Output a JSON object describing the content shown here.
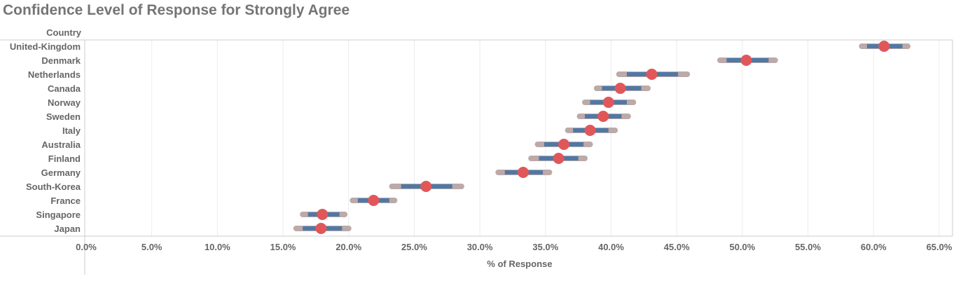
{
  "chart_data": {
    "type": "dot-interval",
    "title": "Confidence Level of Response for Strongly Agree",
    "row_header": "Country",
    "xlabel": "% of Response",
    "xlim": [
      0,
      65
    ],
    "xticks": [
      0,
      5,
      10,
      15,
      20,
      25,
      30,
      35,
      40,
      45,
      50,
      55,
      60,
      65
    ],
    "xtick_labels": [
      "0.0%",
      "5.0%",
      "10.0%",
      "15.0%",
      "20.0%",
      "25.0%",
      "30.0%",
      "35.0%",
      "40.0%",
      "45.0%",
      "50.0%",
      "55.0%",
      "60.0%",
      "65.0%"
    ],
    "colors": {
      "outer": "#bcaaa8",
      "inner": "#4e79a7",
      "point": "#e15759",
      "grid": "#ececec",
      "axis": "#cccccc"
    },
    "series": [
      {
        "country": "United-Kingdom",
        "value": 60.8,
        "outer": [
          59.1,
          62.6
        ],
        "inner": [
          59.5,
          62.2
        ]
      },
      {
        "country": "Denmark",
        "value": 50.3,
        "outer": [
          48.3,
          52.5
        ],
        "inner": [
          48.8,
          52.0
        ]
      },
      {
        "country": "Netherlands",
        "value": 43.1,
        "outer": [
          40.6,
          45.8
        ],
        "inner": [
          41.2,
          45.1
        ]
      },
      {
        "country": "Canada",
        "value": 40.7,
        "outer": [
          38.9,
          42.8
        ],
        "inner": [
          39.3,
          42.3
        ]
      },
      {
        "country": "Norway",
        "value": 39.8,
        "outer": [
          38.0,
          41.7
        ],
        "inner": [
          38.4,
          41.2
        ]
      },
      {
        "country": "Sweden",
        "value": 39.4,
        "outer": [
          37.6,
          41.3
        ],
        "inner": [
          38.0,
          40.8
        ]
      },
      {
        "country": "Italy",
        "value": 38.4,
        "outer": [
          36.7,
          40.3
        ],
        "inner": [
          37.1,
          39.8
        ]
      },
      {
        "country": "Australia",
        "value": 36.4,
        "outer": [
          34.4,
          38.4
        ],
        "inner": [
          34.9,
          37.9
        ]
      },
      {
        "country": "Finland",
        "value": 36.0,
        "outer": [
          33.9,
          38.0
        ],
        "inner": [
          34.5,
          37.5
        ]
      },
      {
        "country": "Germany",
        "value": 33.3,
        "outer": [
          31.4,
          35.3
        ],
        "inner": [
          31.9,
          34.8
        ]
      },
      {
        "country": "South-Korea",
        "value": 25.9,
        "outer": [
          23.3,
          28.6
        ],
        "inner": [
          24.0,
          27.9
        ]
      },
      {
        "country": "France",
        "value": 21.9,
        "outer": [
          20.3,
          23.5
        ],
        "inner": [
          20.7,
          23.1
        ]
      },
      {
        "country": "Singapore",
        "value": 18.0,
        "outer": [
          16.5,
          19.7
        ],
        "inner": [
          16.9,
          19.3
        ]
      },
      {
        "country": "Japan",
        "value": 17.9,
        "outer": [
          16.0,
          20.0
        ],
        "inner": [
          16.5,
          19.5
        ]
      }
    ]
  }
}
